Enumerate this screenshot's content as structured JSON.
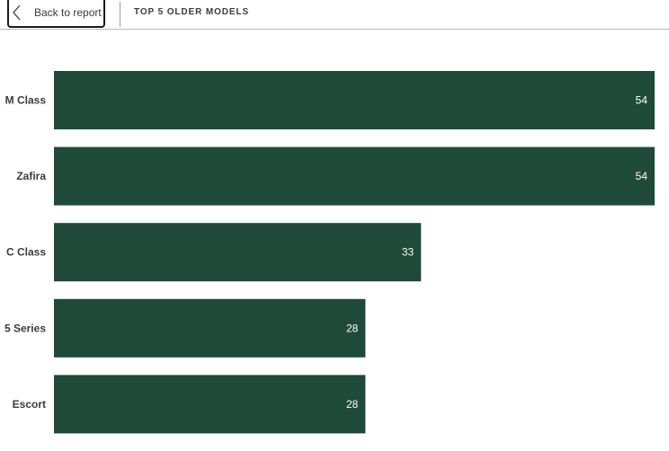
{
  "header": {
    "back_label": "Back to report",
    "title": "TOP 5 OLDER MODELS"
  },
  "icons": {
    "back": "chevron-left-icon"
  },
  "colors": {
    "bar": "#1f4a3a",
    "bar_label": "#ffffff",
    "category_label": "#3c3c3c"
  },
  "chart_data": {
    "type": "bar",
    "orientation": "horizontal",
    "categories": [
      "M Class",
      "Zafira",
      "C Class",
      "5 Series",
      "Escort"
    ],
    "values": [
      54,
      54,
      33,
      28,
      28
    ],
    "title": "",
    "xlabel": "",
    "ylabel": "",
    "xlim": [
      0,
      54
    ],
    "grid": false,
    "data_labels": true
  }
}
